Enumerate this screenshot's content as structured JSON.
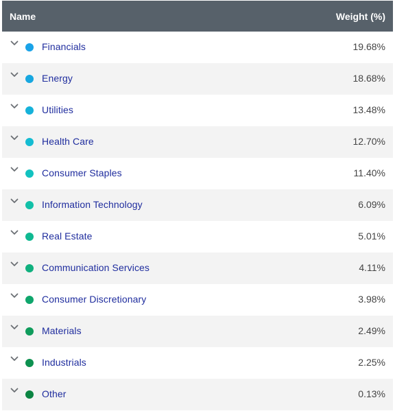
{
  "header": {
    "name_label": "Name",
    "weight_label": "Weight (%)"
  },
  "rows": [
    {
      "label": "Financials",
      "weight": "19.68%",
      "color": "#1aa3e8",
      "icon": "chevron-down-icon"
    },
    {
      "label": "Energy",
      "weight": "18.68%",
      "color": "#17a7e0",
      "icon": "chevron-down-icon"
    },
    {
      "label": "Utilities",
      "weight": "13.48%",
      "color": "#16b2da",
      "icon": "chevron-down-icon"
    },
    {
      "label": "Health Care",
      "weight": "12.70%",
      "color": "#14bcd2",
      "icon": "chevron-down-icon"
    },
    {
      "label": "Consumer Staples",
      "weight": "11.40%",
      "color": "#12c2c0",
      "icon": "chevron-down-icon"
    },
    {
      "label": "Information Technology",
      "weight": "6.09%",
      "color": "#12c0a8",
      "icon": "chevron-down-icon"
    },
    {
      "label": "Real Estate",
      "weight": "5.01%",
      "color": "#10b992",
      "icon": "chevron-down-icon"
    },
    {
      "label": "Communication Services",
      "weight": "4.11%",
      "color": "#10b07e",
      "icon": "chevron-down-icon"
    },
    {
      "label": "Consumer Discretionary",
      "weight": "3.98%",
      "color": "#0fa66c",
      "icon": "chevron-down-icon"
    },
    {
      "label": "Materials",
      "weight": "2.49%",
      "color": "#0f9c5c",
      "icon": "chevron-down-icon"
    },
    {
      "label": "Industrials",
      "weight": "2.25%",
      "color": "#0d9150",
      "icon": "chevron-down-icon"
    },
    {
      "label": "Other",
      "weight": "0.13%",
      "color": "#0b8442",
      "icon": "chevron-down-icon"
    }
  ]
}
